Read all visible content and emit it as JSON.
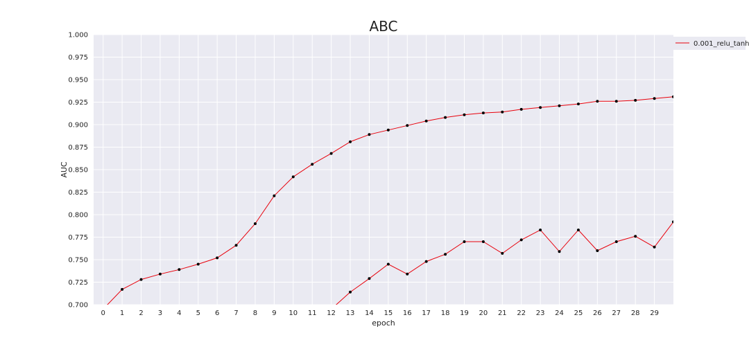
{
  "chart_data": {
    "type": "line",
    "title": "ABC",
    "xlabel": "epoch",
    "ylabel": "AUC",
    "xlim": [
      -0.5,
      30
    ],
    "ylim": [
      0.7,
      1.0
    ],
    "x_ticks": [
      0,
      1,
      2,
      3,
      4,
      5,
      6,
      7,
      8,
      9,
      10,
      11,
      12,
      13,
      14,
      15,
      16,
      17,
      18,
      19,
      20,
      21,
      22,
      23,
      24,
      25,
      26,
      27,
      28,
      29
    ],
    "y_ticks": [
      0.7,
      0.725,
      0.75,
      0.775,
      0.8,
      0.825,
      0.85,
      0.875,
      0.9,
      0.925,
      0.95,
      0.975,
      1.0
    ],
    "y_tick_labels": [
      "0.700",
      "0.725",
      "0.750",
      "0.775",
      "0.800",
      "0.825",
      "0.850",
      "0.875",
      "0.900",
      "0.925",
      "0.950",
      "0.975",
      "1.000"
    ],
    "grid": true,
    "legend_position": "top-right, outside plot",
    "background_color": "#eaeaf2",
    "series": [
      {
        "name": "0.001_relu_tanh",
        "color": "#e8000b",
        "marker_color": "#000000",
        "x": [
          0,
          1,
          2,
          3,
          4,
          5,
          6,
          7,
          8,
          9,
          10,
          11,
          12,
          13,
          14,
          15,
          16,
          17,
          18,
          19,
          20,
          21,
          22,
          23,
          24,
          25,
          26,
          27,
          28,
          29,
          30
        ],
        "values": [
          0.695,
          0.717,
          0.728,
          0.734,
          0.739,
          0.745,
          0.752,
          0.766,
          0.79,
          0.821,
          0.842,
          0.856,
          0.868,
          0.881,
          0.889,
          0.894,
          0.899,
          0.904,
          0.908,
          0.911,
          0.913,
          0.914,
          0.917,
          0.919,
          0.921,
          0.923,
          0.926,
          0.926,
          0.927,
          0.929,
          0.931
        ]
      },
      {
        "name": "",
        "color": "#e8000b",
        "marker_color": "#000000",
        "x": [
          12,
          13,
          14,
          15,
          16,
          17,
          18,
          19,
          20,
          21,
          22,
          23,
          24,
          25,
          26,
          27,
          28,
          29,
          30
        ],
        "values": [
          0.695,
          0.714,
          0.729,
          0.745,
          0.734,
          0.748,
          0.756,
          0.77,
          0.77,
          0.757,
          0.772,
          0.783,
          0.759,
          0.783,
          0.76,
          0.77,
          0.776,
          0.764,
          0.792
        ]
      }
    ]
  }
}
